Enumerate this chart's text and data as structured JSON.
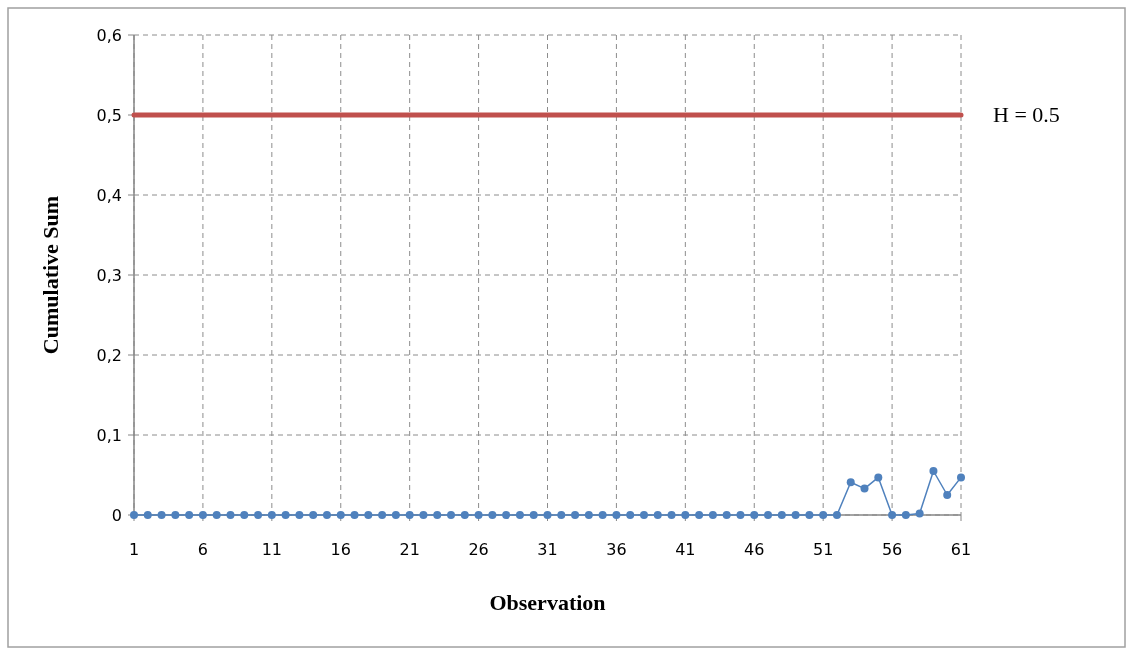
{
  "chart_data": {
    "type": "line",
    "xlabel": "Observation",
    "ylabel": "Cumulative Sum",
    "x": [
      1,
      2,
      3,
      4,
      5,
      6,
      7,
      8,
      9,
      10,
      11,
      12,
      13,
      14,
      15,
      16,
      17,
      18,
      19,
      20,
      21,
      22,
      23,
      24,
      25,
      26,
      27,
      28,
      29,
      30,
      31,
      32,
      33,
      34,
      35,
      36,
      37,
      38,
      39,
      40,
      41,
      42,
      43,
      44,
      45,
      46,
      47,
      48,
      49,
      50,
      51,
      52,
      53,
      54,
      55,
      56,
      57,
      58,
      59,
      60,
      61
    ],
    "xlim": [
      1,
      61
    ],
    "xticks": [
      1,
      6,
      11,
      16,
      21,
      26,
      31,
      36,
      41,
      46,
      51,
      56,
      61
    ],
    "ylim": [
      0,
      0.6
    ],
    "yticks": [
      {
        "value": 0,
        "label": "0"
      },
      {
        "value": 0.1,
        "label": "0,1"
      },
      {
        "value": 0.2,
        "label": "0,2"
      },
      {
        "value": 0.3,
        "label": "0,3"
      },
      {
        "value": 0.4,
        "label": "0,4"
      },
      {
        "value": 0.5,
        "label": "0,5"
      },
      {
        "value": 0.6,
        "label": "0,6"
      }
    ],
    "grid": true,
    "series": [
      {
        "color": "#4f81bd",
        "marker": "circle",
        "values": [
          0,
          0,
          0,
          0,
          0,
          0,
          0,
          0,
          0,
          0,
          0,
          0,
          0,
          0,
          0,
          0,
          0,
          0,
          0,
          0,
          0,
          0,
          0,
          0,
          0,
          0,
          0,
          0,
          0,
          0,
          0,
          0,
          0,
          0,
          0,
          0,
          0,
          0,
          0,
          0,
          0,
          0,
          0,
          0,
          0,
          0,
          0,
          0,
          0,
          0,
          0,
          0,
          0.041,
          0.033,
          0.047,
          0,
          0,
          0.002,
          0.055,
          0.025,
          0.047
        ]
      },
      {
        "name": "H = 0.5",
        "color": "#c0504d",
        "marker": "none",
        "values": [
          0.5,
          0.5,
          0.5,
          0.5,
          0.5,
          0.5,
          0.5,
          0.5,
          0.5,
          0.5,
          0.5,
          0.5,
          0.5,
          0.5,
          0.5,
          0.5,
          0.5,
          0.5,
          0.5,
          0.5,
          0.5,
          0.5,
          0.5,
          0.5,
          0.5,
          0.5,
          0.5,
          0.5,
          0.5,
          0.5,
          0.5,
          0.5,
          0.5,
          0.5,
          0.5,
          0.5,
          0.5,
          0.5,
          0.5,
          0.5,
          0.5,
          0.5,
          0.5,
          0.5,
          0.5,
          0.5,
          0.5,
          0.5,
          0.5,
          0.5,
          0.5,
          0.5,
          0.5,
          0.5,
          0.5,
          0.5,
          0.5,
          0.5,
          0.5,
          0.5,
          0.5
        ]
      }
    ]
  }
}
